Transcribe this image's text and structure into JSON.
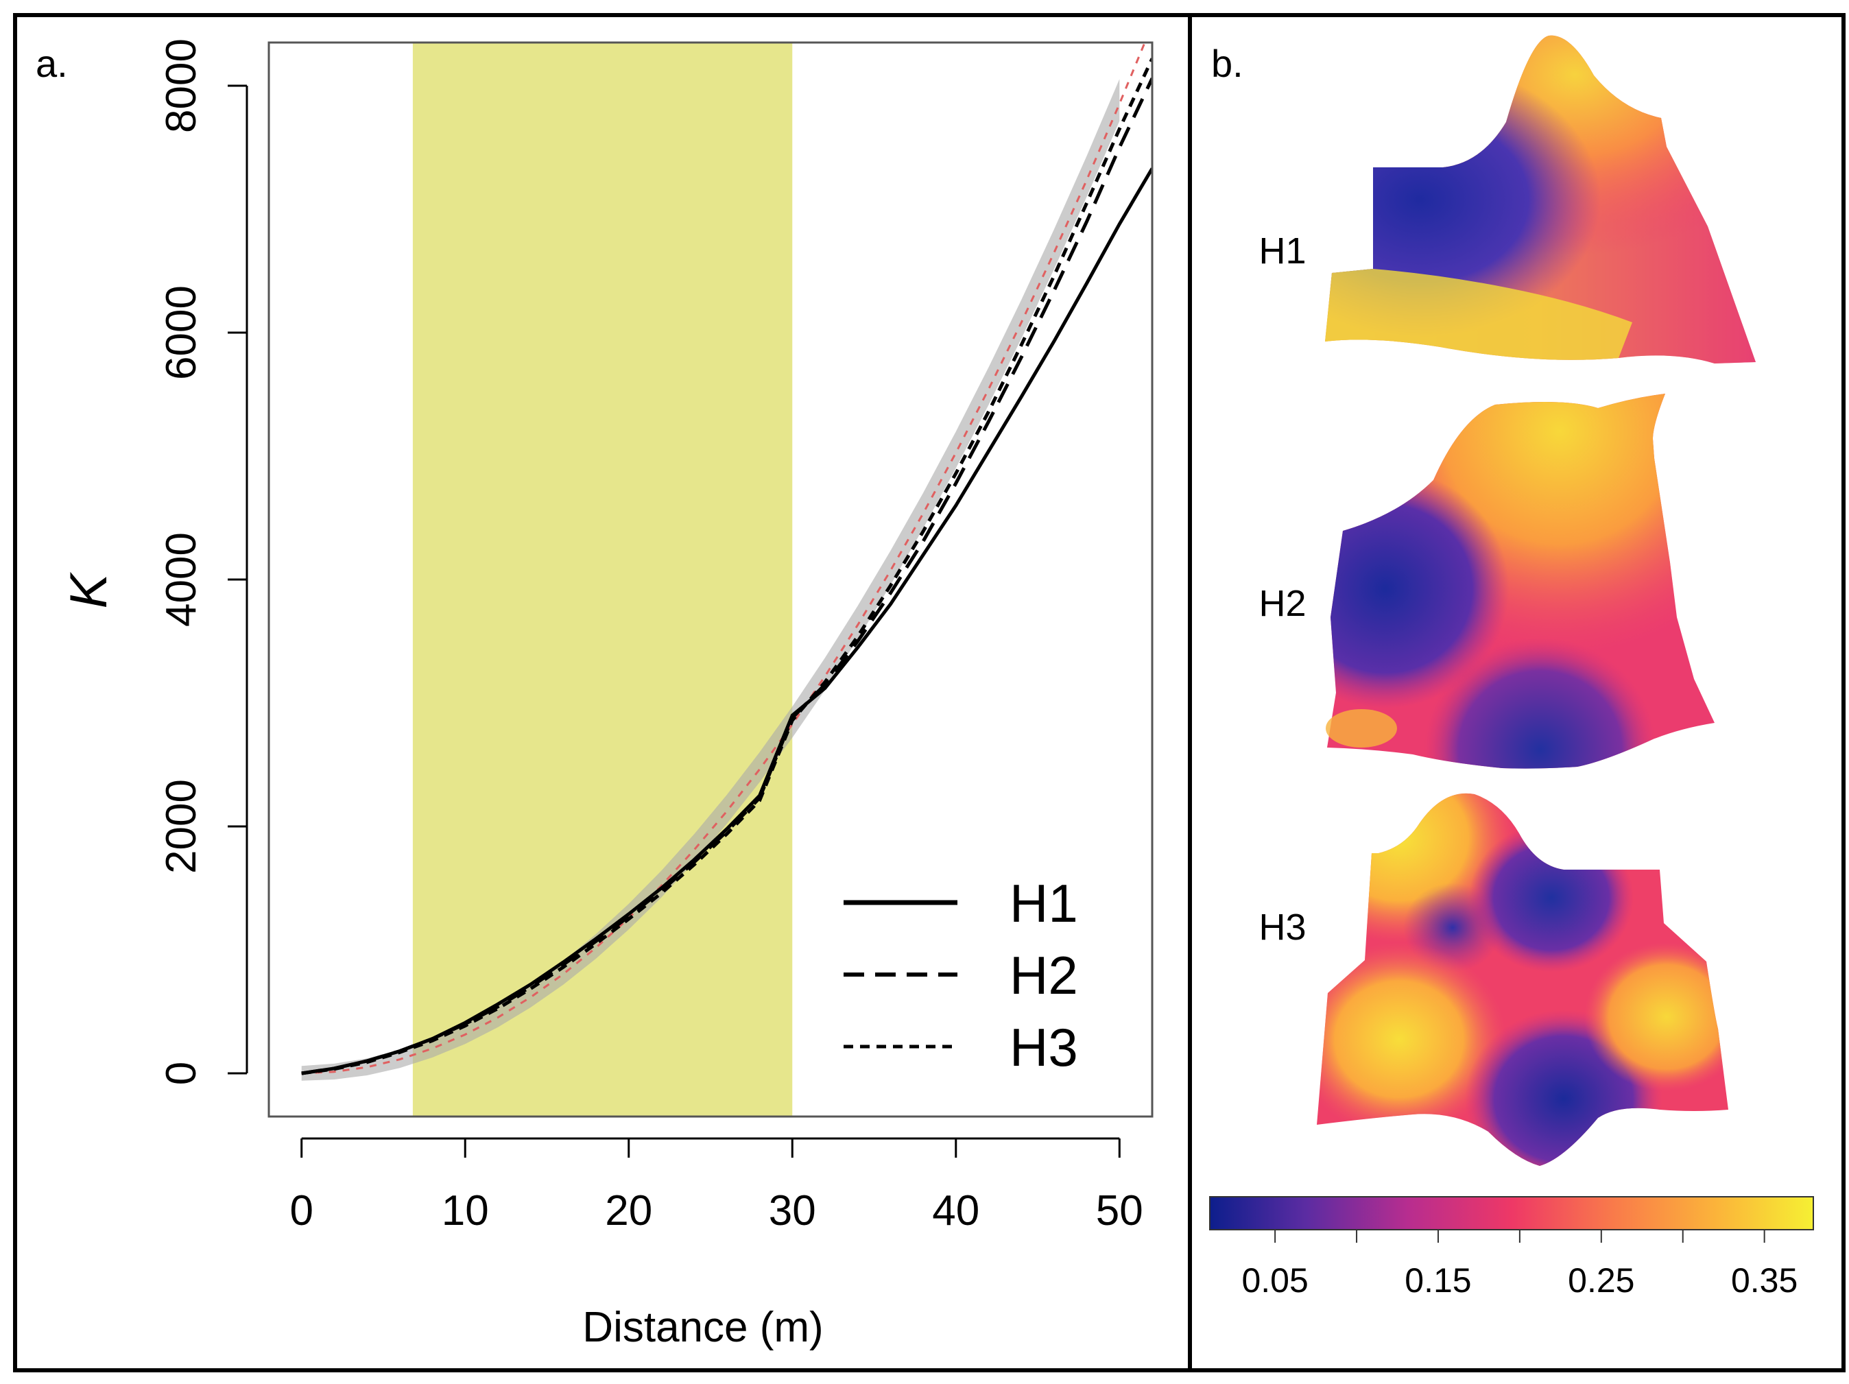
{
  "panels": {
    "a": {
      "label": "a."
    },
    "b": {
      "label": "b."
    }
  },
  "chart_data": [
    {
      "type": "line",
      "title": "",
      "xlabel": "Distance (m)",
      "ylabel": "K",
      "xlim": [
        -2,
        52
      ],
      "ylim": [
        -350,
        8350
      ],
      "xticks": [
        0,
        10,
        20,
        30,
        40,
        50
      ],
      "yticks": [
        0,
        2000,
        4000,
        6000,
        8000
      ],
      "x": [
        0,
        2,
        4,
        6,
        8,
        10,
        12,
        14,
        16,
        18,
        20,
        22,
        24,
        26,
        28,
        30,
        32,
        34,
        36,
        38,
        40,
        42,
        44,
        46,
        48,
        50,
        52
      ],
      "series": [
        {
          "name": "H1",
          "style": "solid",
          "color": "#000000",
          "values": [
            0,
            40,
            100,
            180,
            280,
            410,
            560,
            720,
            900,
            1090,
            1290,
            1500,
            1730,
            1980,
            2250,
            2900,
            3120,
            3450,
            3800,
            4200,
            4600,
            5040,
            5480,
            5930,
            6400,
            6880,
            7330
          ]
        },
        {
          "name": "H2",
          "style": "dashed",
          "color": "#000000",
          "values": [
            0,
            40,
            100,
            180,
            280,
            400,
            540,
            700,
            880,
            1070,
            1270,
            1480,
            1710,
            1960,
            2230,
            2880,
            3150,
            3500,
            3890,
            4310,
            4780,
            5280,
            5800,
            6340,
            6900,
            7500,
            8060
          ]
        },
        {
          "name": "H3",
          "style": "dotted",
          "color": "#000000",
          "values": [
            0,
            35,
            90,
            170,
            265,
            385,
            525,
            685,
            860,
            1050,
            1250,
            1460,
            1690,
            1940,
            2210,
            2860,
            3170,
            3540,
            3950,
            4390,
            4860,
            5360,
            5900,
            6460,
            7050,
            7650,
            8220
          ]
        },
        {
          "name": "CSR expectation",
          "style": "dotted",
          "color": "#e06060",
          "legend": false,
          "values": [
            0,
            13,
            50,
            113,
            201,
            314,
            452,
            616,
            804,
            1018,
            1257,
            1520,
            1810,
            2124,
            2463,
            2827,
            3217,
            3632,
            4072,
            4536,
            5027,
            5542,
            6082,
            6648,
            7238,
            7854,
            8495
          ]
        }
      ],
      "envelope": {
        "color": "#aaaaaa",
        "x_range": [
          0,
          50
        ],
        "halfwidth_at_start": 60,
        "halfwidth_at_end": 140
      },
      "highlight_region": {
        "x_from": 6.8,
        "x_to": 30,
        "color": "#e6e68c"
      },
      "legend": {
        "position": "bottom-right",
        "entries": [
          "H1",
          "H2",
          "H3"
        ]
      }
    },
    {
      "type": "heatmap",
      "surface_labels": [
        "H1",
        "H2",
        "H3"
      ],
      "colorbar": {
        "ticks": [
          0.05,
          0.15,
          0.25,
          0.35
        ],
        "tick_labels": [
          "0.05",
          "0.15",
          "0.25",
          "0.35"
        ],
        "colors": [
          "#0d1e8c",
          "#5c2ca2",
          "#b82d8f",
          "#ee3866",
          "#f97b4a",
          "#fbb43a",
          "#f6f033"
        ]
      }
    }
  ]
}
